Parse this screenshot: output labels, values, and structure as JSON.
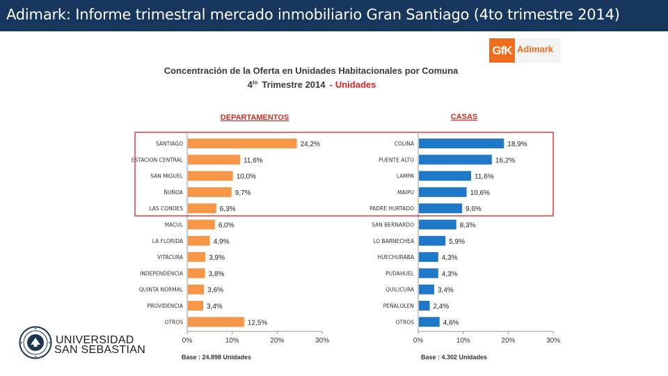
{
  "header": {
    "title": "Adimark: Informe trimestral mercado inmobiliario Gran Santiago (4to trimestre 2014)"
  },
  "brand": {
    "logo_box": "GfK",
    "logo_word": "Adimark",
    "accent": "#f06d1d"
  },
  "chart_title": {
    "line1": "Concentración de la Oferta en Unidades Habitacionales por Comuna",
    "ordinal": "4",
    "ordinal_sup": "to",
    "line2_main": "Trimestre 2014",
    "line2_dash": "-",
    "line2_red": "Unidades"
  },
  "chart_data": [
    {
      "type": "bar",
      "orientation": "horizontal",
      "title": "DEPARTAMENTOS",
      "categories": [
        "SANTIAGO",
        "ESTACION CENTRAL",
        "SAN MIGUEL",
        "ÑUÑOA",
        "LAS CONDES",
        "MACUL",
        "LA FLORIDA",
        "VITACURA",
        "INDEPENDENCIA",
        "QUINTA NORMAL",
        "PROVIDENCIA",
        "OTROS"
      ],
      "values": [
        24.2,
        11.6,
        10.0,
        9.7,
        6.3,
        6.0,
        4.9,
        3.9,
        3.8,
        3.6,
        3.4,
        12.5
      ],
      "value_labels": [
        "24,2%",
        "11,6%",
        "10,0%",
        "9,7%",
        "6,3%",
        "6,0%",
        "4,9%",
        "3,9%",
        "3,8%",
        "3,6%",
        "3,4%",
        "12,5%"
      ],
      "xlim": [
        0,
        30
      ],
      "ticks": [
        "0%",
        "10%",
        "20%",
        "30%"
      ],
      "base_note": "Base : 24.898 Unidades",
      "color": "#f79646"
    },
    {
      "type": "bar",
      "orientation": "horizontal",
      "title": "CASAS",
      "categories": [
        "COLINA",
        "PUENTE ALTO",
        "LAMPA",
        "MAIPU",
        "PADRE HURTADO",
        "SAN BERNARDO",
        "LO BARNECHEA",
        "HUECHURABA",
        "PUDAHUEL",
        "QUILICURA",
        "PEÑALOLEN",
        "OTROS"
      ],
      "values": [
        18.9,
        16.2,
        11.6,
        10.6,
        9.6,
        8.3,
        5.9,
        4.3,
        4.3,
        3.4,
        2.4,
        4.6
      ],
      "value_labels": [
        "18,9%",
        "16,2%",
        "11,6%",
        "10,6%",
        "9,6%",
        "8,3%",
        "5,9%",
        "4,3%",
        "4,3%",
        "3,4%",
        "2,4%",
        "4,6%"
      ],
      "xlim": [
        0,
        30
      ],
      "ticks": [
        "0%",
        "10%",
        "20%",
        "30%"
      ],
      "base_note": "Base : 4.302 Unidades",
      "color": "#1f78c8"
    }
  ],
  "highlight": {
    "color": "#e02020",
    "rows_highlighted": 5
  },
  "university": {
    "line1": "UNIVERSIDAD",
    "line2": "SAN SEBASTIAN",
    "color": "#1b3650"
  }
}
